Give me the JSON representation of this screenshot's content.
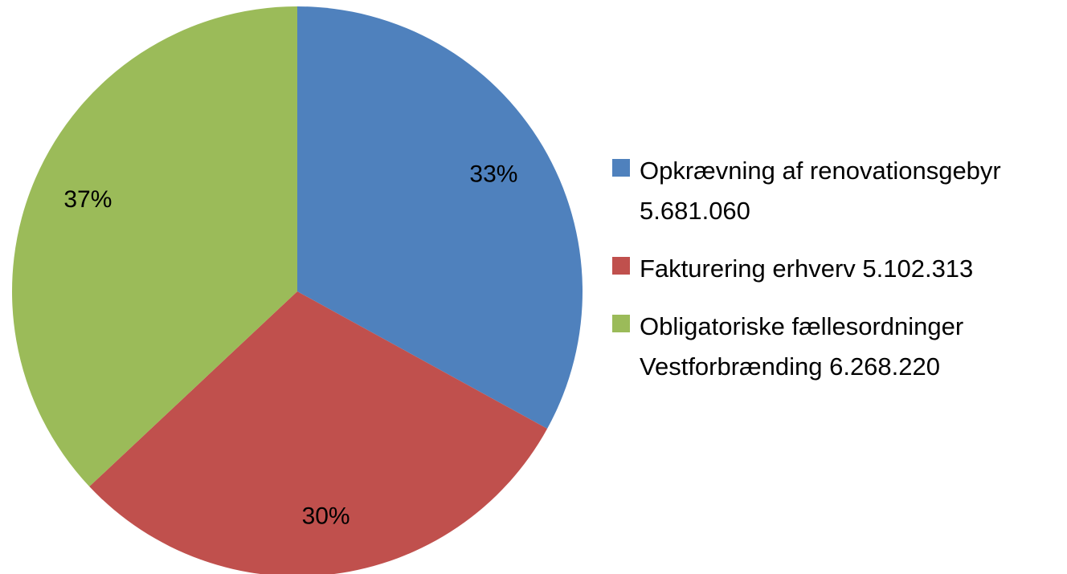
{
  "chart_data": {
    "type": "pie",
    "categories": [
      "Opkrævning af renovationsgebyr 5.681.060",
      "Fakturering erhverv 5.102.313",
      "Obligatoriske fællesordninger Vestforbrænding 6.268.220"
    ],
    "values": [
      33,
      30,
      37
    ],
    "value_labels": [
      "33%",
      "30%",
      "37%"
    ],
    "colors": [
      "#4f81bd",
      "#c0504d",
      "#9bbb59"
    ],
    "legend": "right"
  }
}
